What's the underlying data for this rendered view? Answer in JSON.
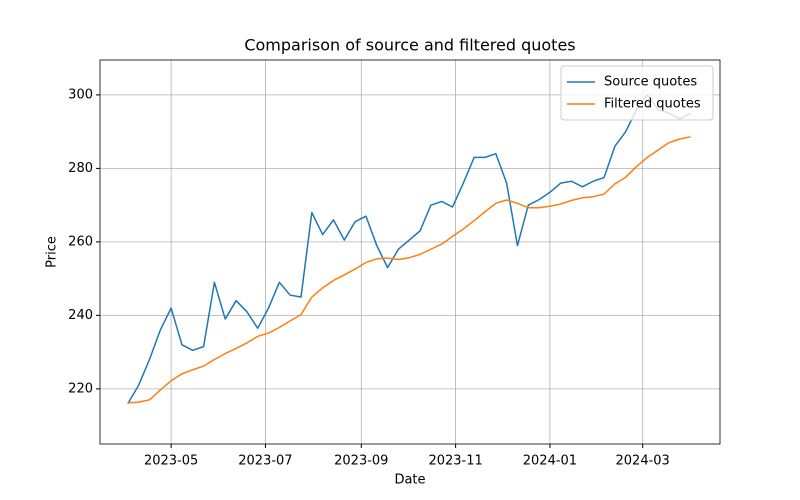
{
  "chart_data": {
    "type": "line",
    "title": "Comparison of source and filtered quotes",
    "xlabel": "Date",
    "ylabel": "Price",
    "x": [
      "2023-04-03",
      "2023-04-10",
      "2023-04-17",
      "2023-04-24",
      "2023-05-01",
      "2023-05-08",
      "2023-05-15",
      "2023-05-22",
      "2023-05-29",
      "2023-06-05",
      "2023-06-12",
      "2023-06-19",
      "2023-06-26",
      "2023-07-03",
      "2023-07-10",
      "2023-07-17",
      "2023-07-24",
      "2023-07-31",
      "2023-08-07",
      "2023-08-14",
      "2023-08-21",
      "2023-08-28",
      "2023-09-04",
      "2023-09-11",
      "2023-09-18",
      "2023-09-25",
      "2023-10-02",
      "2023-10-09",
      "2023-10-16",
      "2023-10-23",
      "2023-10-30",
      "2023-11-06",
      "2023-11-13",
      "2023-11-20",
      "2023-11-27",
      "2023-12-04",
      "2023-12-11",
      "2023-12-18",
      "2023-12-25",
      "2024-01-01",
      "2024-01-08",
      "2024-01-15",
      "2024-01-22",
      "2024-01-29",
      "2024-02-05",
      "2024-02-12",
      "2024-02-19",
      "2024-02-26",
      "2024-03-04",
      "2024-03-11",
      "2024-03-18",
      "2024-03-25",
      "2024-04-01"
    ],
    "series": [
      {
        "name": "Source quotes",
        "color": "#1f77b4",
        "values": [
          216,
          221,
          228,
          236,
          242,
          232,
          230.5,
          231.5,
          249,
          239,
          244,
          241,
          236.5,
          242,
          249,
          245.5,
          245,
          268,
          262,
          266,
          260.5,
          265.5,
          267,
          259,
          253,
          258,
          260.5,
          263,
          270,
          271,
          269.5,
          276,
          283,
          283,
          284,
          276,
          259,
          270,
          271.5,
          273.5,
          276,
          276.5,
          275,
          276.5,
          277.5,
          286,
          290,
          296,
          300,
          296,
          295,
          293.5,
          295
        ]
      },
      {
        "name": "Filtered quotes",
        "color": "#ff7f0e",
        "values": [
          216.2,
          216.4,
          217,
          219.7,
          222.2,
          224.1,
          225.2,
          226.2,
          228,
          229.6,
          231,
          232.5,
          234.3,
          235.2,
          236.7,
          238.5,
          240.2,
          245,
          247.5,
          249.5,
          251,
          252.6,
          254.4,
          255.4,
          255.6,
          255.2,
          255.7,
          256.6,
          258,
          259.4,
          261.5,
          263.5,
          265.8,
          268.2,
          270.5,
          271.4,
          270.5,
          269.3,
          269.3,
          269.7,
          270.3,
          271.3,
          272,
          272.3,
          273,
          275.8,
          277.6,
          280.5,
          283,
          285,
          287,
          288,
          288.6
        ]
      }
    ],
    "xlim": [
      "2023-03-16",
      "2024-04-20"
    ],
    "xticks": [
      {
        "value": "2023-05-01",
        "label": "2023-05"
      },
      {
        "value": "2023-07-01",
        "label": "2023-07"
      },
      {
        "value": "2023-09-01",
        "label": "2023-09"
      },
      {
        "value": "2023-11-01",
        "label": "2023-11"
      },
      {
        "value": "2024-01-01",
        "label": "2024-01"
      },
      {
        "value": "2024-03-01",
        "label": "2024-03"
      }
    ],
    "ylim": [
      205,
      309.5
    ],
    "yticks": [
      220,
      240,
      260,
      280,
      300
    ],
    "grid": true,
    "legend": "upper right"
  }
}
